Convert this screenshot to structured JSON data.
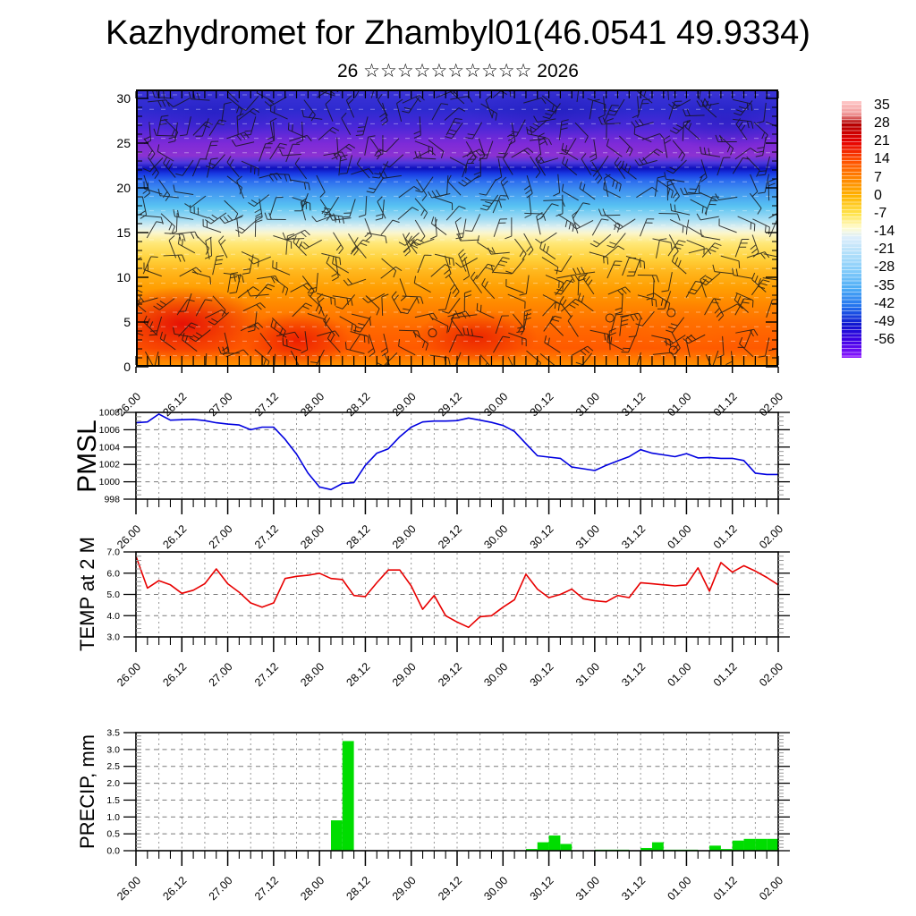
{
  "header": {
    "title": "Kazhydromet for Zhambyl01(46.0541 49.9334)",
    "subtitle": "26 ☆☆☆☆☆☆☆☆☆☆ 2026"
  },
  "x_axis": {
    "labels": [
      "26.00",
      "26.12",
      "27.00",
      "27.12",
      "28.00",
      "28.12",
      "29.00",
      "29.12",
      "30.00",
      "30.12",
      "31.00",
      "31.12",
      "01.00",
      "01.12",
      "02.00"
    ],
    "label_step_hours": 12,
    "minor_step_hours": 3,
    "grid_step_hours": 6,
    "total_hours": 168
  },
  "chart_data": [
    {
      "type": "heatmap",
      "name": "upper-air-temperature-wind-cross-section",
      "ylabel": "",
      "ylim": [
        0,
        31
      ],
      "ytick_values": [
        0,
        5,
        10,
        15,
        20,
        25,
        30
      ],
      "ytick_labels": [
        "0",
        "5",
        "10",
        "15",
        "20",
        "25",
        "30"
      ],
      "overlay": "wind-barbs-and-white-dashed-contours",
      "gradient": [
        {
          "pos": 0.0,
          "color": "#3a33d6"
        },
        {
          "pos": 0.07,
          "color": "#2e2ad0"
        },
        {
          "pos": 0.13,
          "color": "#4a28d8"
        },
        {
          "pos": 0.19,
          "color": "#7d2ad8"
        },
        {
          "pos": 0.235,
          "color": "#8c32d2"
        },
        {
          "pos": 0.262,
          "color": "#4b38dc"
        },
        {
          "pos": 0.282,
          "color": "#0d10bc"
        },
        {
          "pos": 0.3,
          "color": "#1838e2"
        },
        {
          "pos": 0.325,
          "color": "#2a68ee"
        },
        {
          "pos": 0.36,
          "color": "#3f90f0"
        },
        {
          "pos": 0.42,
          "color": "#58c2f2"
        },
        {
          "pos": 0.47,
          "color": "#a8def4"
        },
        {
          "pos": 0.5,
          "color": "#e4f2ee"
        },
        {
          "pos": 0.518,
          "color": "#fbf6cc"
        },
        {
          "pos": 0.555,
          "color": "#ffe878"
        },
        {
          "pos": 0.61,
          "color": "#ffd23c"
        },
        {
          "pos": 0.66,
          "color": "#ffb61c"
        },
        {
          "pos": 0.72,
          "color": "#ff9e02"
        },
        {
          "pos": 0.79,
          "color": "#ff8400"
        },
        {
          "pos": 0.87,
          "color": "#ff6700"
        },
        {
          "pos": 0.94,
          "color": "#ff5a00"
        },
        {
          "pos": 1.0,
          "color": "#ff9100"
        }
      ],
      "hotspots": [
        {
          "x": 7,
          "y": 85,
          "rx": 125,
          "ry": 58,
          "color": "rgba(228,12,5,0.95)"
        },
        {
          "x": 25,
          "y": 91,
          "rx": 85,
          "ry": 44,
          "color": "rgba(235,25,0,0.9)"
        },
        {
          "x": 53,
          "y": 90,
          "rx": 95,
          "ry": 42,
          "color": "rgba(232,28,0,0.85)"
        },
        {
          "x": 86,
          "y": 86,
          "rx": 90,
          "ry": 40,
          "color": "rgba(255,110,0,0.55)"
        },
        {
          "x": 12,
          "y": 8,
          "rx": 110,
          "ry": 42,
          "color": "rgba(34,28,190,0.55)"
        },
        {
          "x": 65,
          "y": 7,
          "rx": 130,
          "ry": 42,
          "color": "rgba(28,24,180,0.50)"
        },
        {
          "x": 92,
          "y": 11,
          "rx": 100,
          "ry": 44,
          "color": "rgba(30,26,185,0.50)"
        }
      ],
      "colorbar": {
        "labels": [
          "35",
          "28",
          "21",
          "14",
          "7",
          "0",
          "-7",
          "-14",
          "-21",
          "-28",
          "-35",
          "-42",
          "-49",
          "-56"
        ],
        "stops": [
          {
            "pos": 0.0,
            "color": "#ffc8c8"
          },
          {
            "pos": 0.05,
            "color": "#f09898"
          },
          {
            "pos": 0.09,
            "color": "#b40000"
          },
          {
            "pos": 0.16,
            "color": "#e60000"
          },
          {
            "pos": 0.23,
            "color": "#ff4e00"
          },
          {
            "pos": 0.3,
            "color": "#ff8400"
          },
          {
            "pos": 0.37,
            "color": "#ffb400"
          },
          {
            "pos": 0.44,
            "color": "#ffe44e"
          },
          {
            "pos": 0.495,
            "color": "#fffcd2"
          },
          {
            "pos": 0.53,
            "color": "#ddeefb"
          },
          {
            "pos": 0.59,
            "color": "#b4e0fa"
          },
          {
            "pos": 0.66,
            "color": "#84ccfa"
          },
          {
            "pos": 0.73,
            "color": "#4cacf6"
          },
          {
            "pos": 0.8,
            "color": "#2272ee"
          },
          {
            "pos": 0.87,
            "color": "#0e14d0"
          },
          {
            "pos": 0.93,
            "color": "#3c00e4"
          },
          {
            "pos": 1.0,
            "color": "#8c14ff"
          }
        ]
      }
    },
    {
      "type": "line",
      "name": "pmsl",
      "ylabel": "PMSL",
      "color": "#0000e0",
      "ylim": [
        998,
        1008
      ],
      "ytick_values": [
        998,
        1000,
        1002,
        1004,
        1006,
        1008
      ],
      "ytick_labels": [
        "998",
        "1000",
        "1002",
        "1004",
        "1006",
        "1008"
      ],
      "minor_tick_step": 0.5,
      "values": [
        1006.8,
        1006.9,
        1007.8,
        1007.1,
        1007.15,
        1007.2,
        1007.05,
        1006.8,
        1006.65,
        1006.55,
        1006.0,
        1006.3,
        1006.3,
        1004.9,
        1003.2,
        1001.0,
        999.4,
        999.1,
        999.8,
        999.9,
        1001.9,
        1003.3,
        1003.8,
        1005.2,
        1006.3,
        1006.9,
        1007.0,
        1007.0,
        1007.05,
        1007.35,
        1007.1,
        1006.85,
        1006.5,
        1005.8,
        1004.4,
        1003.0,
        1002.85,
        1002.7,
        1001.7,
        1001.5,
        1001.3,
        1001.9,
        1002.4,
        1002.9,
        1003.7,
        1003.3,
        1003.1,
        1002.9,
        1003.25,
        1002.75,
        1002.8,
        1002.7,
        1002.7,
        1002.45,
        1001.0,
        1000.85,
        1000.85
      ]
    },
    {
      "type": "line",
      "name": "temp-at-2m",
      "ylabel": "TEMP at 2 M",
      "color": "#e80000",
      "ylim": [
        3,
        7
      ],
      "ytick_values": [
        3,
        4,
        5,
        6,
        7
      ],
      "ytick_labels": [
        "3.0",
        "4.0",
        "5.0",
        "6.0",
        "7.0"
      ],
      "minor_tick_step": 0.2,
      "values": [
        6.8,
        5.3,
        5.65,
        5.45,
        5.05,
        5.2,
        5.5,
        6.2,
        5.5,
        5.1,
        4.6,
        4.4,
        4.6,
        5.75,
        5.85,
        5.9,
        6.0,
        5.75,
        5.7,
        4.95,
        4.9,
        5.55,
        6.15,
        6.15,
        5.4,
        4.3,
        4.95,
        4.0,
        3.7,
        3.45,
        3.95,
        4.0,
        4.4,
        4.75,
        5.95,
        5.25,
        4.85,
        5.0,
        5.25,
        4.8,
        4.7,
        4.65,
        4.95,
        4.85,
        5.55,
        5.5,
        5.45,
        5.4,
        5.45,
        6.25,
        5.15,
        6.5,
        6.05,
        6.35,
        6.1,
        5.8,
        5.45
      ]
    },
    {
      "type": "bar",
      "name": "precip",
      "ylabel": "PRECIP, mm",
      "color": "#00dd00",
      "ylim": [
        0,
        3.5
      ],
      "ytick_values": [
        0,
        0.5,
        1,
        1.5,
        2,
        2.5,
        3,
        3.5
      ],
      "ytick_labels": [
        "0.0",
        "0.5",
        "1.0",
        "1.5",
        "2.0",
        "2.5",
        "3.0",
        "3.5"
      ],
      "minor_tick_step": 0.1,
      "values": [
        0,
        0,
        0,
        0,
        0,
        0,
        0,
        0,
        0,
        0,
        0,
        0,
        0,
        0,
        0,
        0,
        0,
        0.9,
        3.25,
        0,
        0,
        0,
        0,
        0,
        0,
        0,
        0,
        0,
        0,
        0,
        0,
        0,
        0,
        0,
        0.05,
        0.25,
        0.45,
        0.2,
        0,
        0,
        0.03,
        0.03,
        0.03,
        0,
        0.08,
        0.25,
        0.03,
        0.03,
        0.03,
        0,
        0.15,
        0.05,
        0.3,
        0.35,
        0.35,
        0.35,
        0
      ]
    }
  ]
}
